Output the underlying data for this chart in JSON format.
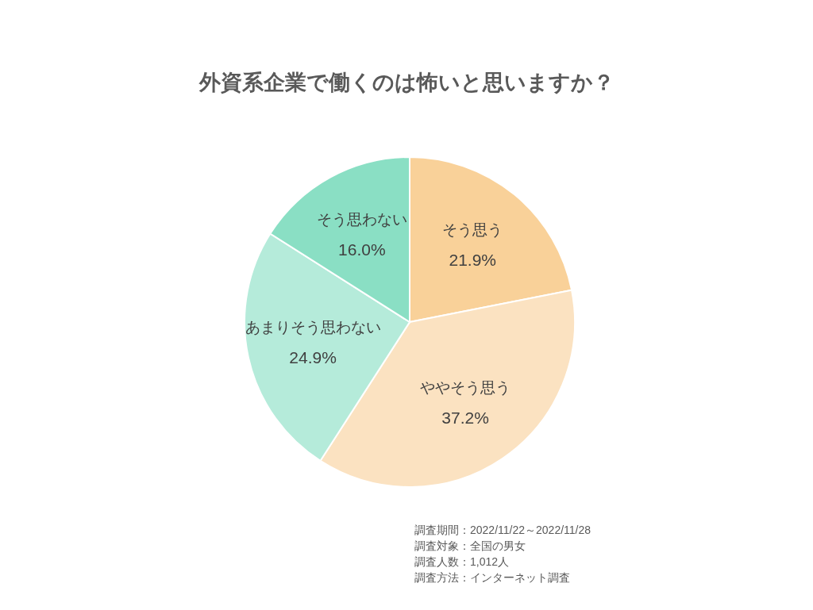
{
  "chart_data": {
    "type": "pie",
    "title": "外資系企業で働くのは怖いと思いますか？",
    "categories": [
      "そう思う",
      "ややそう思う",
      "あまりそう思わない",
      "そう思わない"
    ],
    "values": [
      21.9,
      37.2,
      24.9,
      16.0
    ],
    "value_labels": [
      "21.9%",
      "37.2%",
      "24.9%",
      "16.0%"
    ],
    "colors": [
      "#f9d199",
      "#fbe2c1",
      "#b5ebda",
      "#8adfc4"
    ],
    "annotations": [
      "調査期間：2022/11/22～2022/11/28",
      "調査対象：全国の男女",
      "調査人数：1,012人",
      "調査方法：インターネット調査"
    ]
  }
}
